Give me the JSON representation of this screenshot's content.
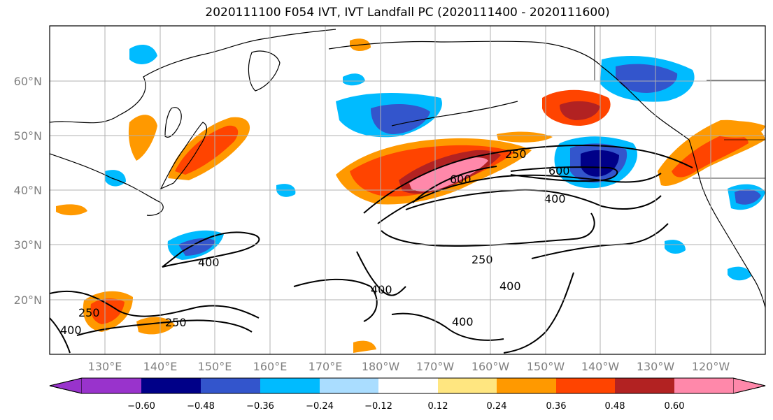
{
  "title": "2020111100 F054 IVT, IVT Landfall PC (2020111400 - 2020111600)",
  "lat_labels": [
    "60°N",
    "50°N",
    "40°N",
    "30°N",
    "20°N"
  ],
  "lon_labels": [
    "130°E",
    "140°E",
    "150°E",
    "160°E",
    "170°E",
    "180°W",
    "170°W",
    "160°W",
    "150°W",
    "140°W",
    "130°W",
    "120°W"
  ],
  "colorbar": {
    "colors": [
      "#9933cc",
      "#000088",
      "#3355cc",
      "#00bbff",
      "#aaddff",
      "#ffffff",
      "#ffe680",
      "#ff9900",
      "#ff4400",
      "#b22222",
      "#ff88aa"
    ],
    "ticks": [
      "−0.60",
      "−0.48",
      "−0.36",
      "−0.24",
      "−0.12",
      "0.12",
      "0.24",
      "0.36",
      "0.48",
      "0.60"
    ]
  },
  "contour_labels": [
    "250",
    "600",
    "400",
    "600",
    "250",
    "400",
    "400",
    "400",
    "400",
    "250",
    "250",
    "400"
  ],
  "colors": {
    "land_outline": "#000000",
    "contour": "#000000",
    "grid": "#b0b0b0"
  }
}
